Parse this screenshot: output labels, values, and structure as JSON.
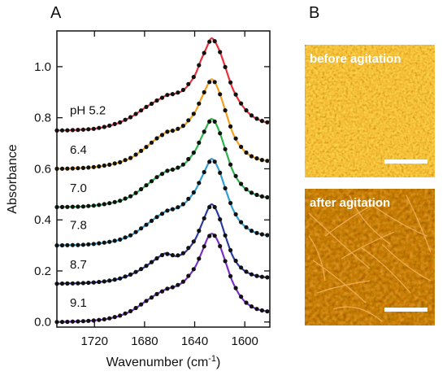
{
  "panels": {
    "a_label": "A",
    "b_label": "B"
  },
  "chart_data": {
    "type": "line",
    "xlabel": "Wavenumber (cm",
    "xlabel_sup": "-1",
    "xlabel_tail": ")",
    "ylabel": "Absorbance",
    "xlim": [
      1750,
      1580
    ],
    "ylim": [
      -0.02,
      1.14
    ],
    "x_reversed": true,
    "xticks": [
      1720,
      1680,
      1640,
      1600
    ],
    "yticks": [
      0.0,
      0.2,
      0.4,
      0.6,
      0.8,
      1.0
    ],
    "ytick_labels": [
      "0.0",
      "0.2",
      "0.4",
      "0.6",
      "0.8",
      "1.0"
    ],
    "xtick_labels": [
      "1720",
      "1680",
      "1640",
      "1600"
    ],
    "series": [
      {
        "name": "pH 5.2",
        "color": "#e8303a",
        "offset": 0.75,
        "peaks": [
          {
            "c": 1628,
            "w": 9,
            "a": 0.33
          },
          {
            "c": 1652,
            "w": 15,
            "a": 0.13
          },
          {
            "c": 1675,
            "w": 18,
            "a": 0.07
          }
        ],
        "points": [
          [
            1750,
            0.75
          ],
          [
            1740,
            0.751
          ],
          [
            1730,
            0.753
          ],
          [
            1720,
            0.757
          ],
          [
            1710,
            0.766
          ],
          [
            1700,
            0.781
          ],
          [
            1690,
            0.805
          ],
          [
            1680,
            0.838
          ],
          [
            1670,
            0.868
          ],
          [
            1662,
            0.889
          ],
          [
            1655,
            0.895
          ],
          [
            1648,
            0.912
          ],
          [
            1640,
            0.965
          ],
          [
            1635,
            1.025
          ],
          [
            1630,
            1.08
          ],
          [
            1627,
            1.11
          ],
          [
            1624,
            1.1
          ],
          [
            1620,
            1.06
          ],
          [
            1615,
            0.99
          ],
          [
            1610,
            0.918
          ],
          [
            1605,
            0.87
          ],
          [
            1600,
            0.835
          ],
          [
            1595,
            0.81
          ],
          [
            1590,
            0.795
          ],
          [
            1585,
            0.785
          ],
          [
            1580,
            0.78
          ]
        ]
      },
      {
        "name": "6.4",
        "color": "#f2a020",
        "offset": 0.6,
        "peaks": [
          {
            "c": 1629,
            "w": 8,
            "a": 0.31
          },
          {
            "c": 1655,
            "w": 16,
            "a": 0.13
          },
          {
            "c": 1680,
            "w": 18,
            "a": 0.05
          }
        ],
        "points": [
          [
            1750,
            0.6
          ],
          [
            1740,
            0.601
          ],
          [
            1730,
            0.603
          ],
          [
            1720,
            0.607
          ],
          [
            1710,
            0.614
          ],
          [
            1700,
            0.625
          ],
          [
            1690,
            0.645
          ],
          [
            1680,
            0.68
          ],
          [
            1670,
            0.72
          ],
          [
            1662,
            0.745
          ],
          [
            1655,
            0.752
          ],
          [
            1648,
            0.772
          ],
          [
            1640,
            0.82
          ],
          [
            1635,
            0.872
          ],
          [
            1630,
            0.925
          ],
          [
            1627,
            0.95
          ],
          [
            1624,
            0.94
          ],
          [
            1620,
            0.895
          ],
          [
            1615,
            0.82
          ],
          [
            1610,
            0.745
          ],
          [
            1605,
            0.698
          ],
          [
            1600,
            0.668
          ],
          [
            1595,
            0.65
          ],
          [
            1590,
            0.64
          ],
          [
            1585,
            0.633
          ],
          [
            1580,
            0.63
          ]
        ]
      },
      {
        "name": "7.0",
        "color": "#2fb34a",
        "offset": 0.45,
        "peaks": [
          {
            "c": 1629,
            "w": 8,
            "a": 0.3
          },
          {
            "c": 1655,
            "w": 16,
            "a": 0.12
          },
          {
            "c": 1680,
            "w": 18,
            "a": 0.04
          }
        ],
        "points": [
          [
            1750,
            0.45
          ],
          [
            1740,
            0.451
          ],
          [
            1730,
            0.452
          ],
          [
            1720,
            0.456
          ],
          [
            1710,
            0.463
          ],
          [
            1700,
            0.474
          ],
          [
            1690,
            0.495
          ],
          [
            1680,
            0.53
          ],
          [
            1670,
            0.568
          ],
          [
            1662,
            0.592
          ],
          [
            1655,
            0.6
          ],
          [
            1648,
            0.62
          ],
          [
            1640,
            0.668
          ],
          [
            1635,
            0.718
          ],
          [
            1630,
            0.77
          ],
          [
            1627,
            0.795
          ],
          [
            1624,
            0.785
          ],
          [
            1620,
            0.742
          ],
          [
            1615,
            0.668
          ],
          [
            1610,
            0.597
          ],
          [
            1605,
            0.552
          ],
          [
            1600,
            0.524
          ],
          [
            1595,
            0.507
          ],
          [
            1590,
            0.497
          ],
          [
            1585,
            0.49
          ],
          [
            1580,
            0.487
          ]
        ]
      },
      {
        "name": "7.8",
        "color": "#2f9fd6",
        "offset": 0.3,
        "peaks": [
          {
            "c": 1629,
            "w": 8,
            "a": 0.29
          },
          {
            "c": 1655,
            "w": 16,
            "a": 0.12
          },
          {
            "c": 1680,
            "w": 18,
            "a": 0.04
          }
        ],
        "points": [
          [
            1750,
            0.3
          ],
          [
            1740,
            0.301
          ],
          [
            1730,
            0.302
          ],
          [
            1720,
            0.306
          ],
          [
            1710,
            0.312
          ],
          [
            1700,
            0.322
          ],
          [
            1690,
            0.342
          ],
          [
            1680,
            0.376
          ],
          [
            1670,
            0.412
          ],
          [
            1662,
            0.436
          ],
          [
            1655,
            0.445
          ],
          [
            1648,
            0.465
          ],
          [
            1640,
            0.512
          ],
          [
            1635,
            0.56
          ],
          [
            1630,
            0.612
          ],
          [
            1627,
            0.638
          ],
          [
            1624,
            0.628
          ],
          [
            1620,
            0.587
          ],
          [
            1615,
            0.515
          ],
          [
            1610,
            0.447
          ],
          [
            1605,
            0.402
          ],
          [
            1600,
            0.375
          ],
          [
            1595,
            0.358
          ],
          [
            1590,
            0.348
          ],
          [
            1585,
            0.342
          ],
          [
            1580,
            0.339
          ]
        ]
      },
      {
        "name": "8.7",
        "color": "#2a3ca0",
        "offset": 0.15,
        "peaks": [
          {
            "c": 1628,
            "w": 8,
            "a": 0.31
          },
          {
            "c": 1662,
            "w": 10,
            "a": 0.12
          },
          {
            "c": 1678,
            "w": 16,
            "a": 0.04
          }
        ],
        "points": [
          [
            1750,
            0.15
          ],
          [
            1740,
            0.151
          ],
          [
            1730,
            0.152
          ],
          [
            1720,
            0.155
          ],
          [
            1710,
            0.16
          ],
          [
            1700,
            0.17
          ],
          [
            1690,
            0.188
          ],
          [
            1680,
            0.215
          ],
          [
            1670,
            0.25
          ],
          [
            1664,
            0.268
          ],
          [
            1660,
            0.265
          ],
          [
            1655,
            0.258
          ],
          [
            1648,
            0.272
          ],
          [
            1640,
            0.32
          ],
          [
            1635,
            0.375
          ],
          [
            1630,
            0.435
          ],
          [
            1627,
            0.46
          ],
          [
            1624,
            0.45
          ],
          [
            1620,
            0.405
          ],
          [
            1615,
            0.33
          ],
          [
            1610,
            0.262
          ],
          [
            1605,
            0.222
          ],
          [
            1600,
            0.2
          ],
          [
            1595,
            0.187
          ],
          [
            1590,
            0.18
          ],
          [
            1585,
            0.176
          ],
          [
            1580,
            0.174
          ]
        ]
      },
      {
        "name": "9.1",
        "color": "#7a2fc8",
        "offset": 0.0,
        "peaks": [
          {
            "c": 1627,
            "w": 8,
            "a": 0.33
          },
          {
            "c": 1652,
            "w": 16,
            "a": 0.1
          },
          {
            "c": 1680,
            "w": 18,
            "a": 0.05
          }
        ],
        "points": [
          [
            1750,
            0.0
          ],
          [
            1740,
            0.001
          ],
          [
            1730,
            0.003
          ],
          [
            1720,
            0.006
          ],
          [
            1710,
            0.012
          ],
          [
            1700,
            0.024
          ],
          [
            1690,
            0.045
          ],
          [
            1680,
            0.078
          ],
          [
            1670,
            0.11
          ],
          [
            1662,
            0.13
          ],
          [
            1655,
            0.14
          ],
          [
            1648,
            0.162
          ],
          [
            1640,
            0.212
          ],
          [
            1635,
            0.265
          ],
          [
            1630,
            0.325
          ],
          [
            1627,
            0.345
          ],
          [
            1624,
            0.338
          ],
          [
            1620,
            0.3
          ],
          [
            1615,
            0.23
          ],
          [
            1610,
            0.16
          ],
          [
            1605,
            0.112
          ],
          [
            1600,
            0.08
          ],
          [
            1595,
            0.062
          ],
          [
            1590,
            0.05
          ],
          [
            1585,
            0.044
          ],
          [
            1580,
            0.04
          ]
        ]
      }
    ]
  },
  "afm": {
    "top_label": "before agitation",
    "bottom_label": "after agitation"
  },
  "colors": {
    "afm_top_base": "#d98a2a",
    "afm_bottom_base": "#8a3a08",
    "scale_bar": "#ffffff"
  }
}
